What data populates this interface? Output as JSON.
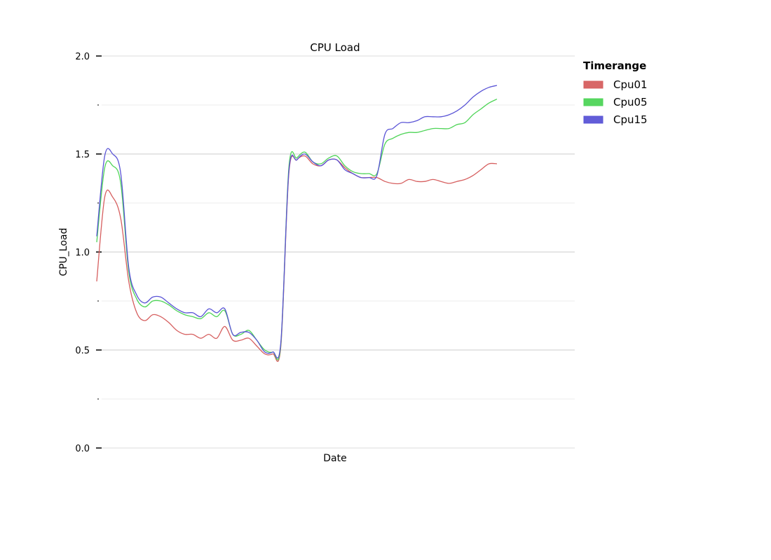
{
  "chart_data": {
    "type": "line",
    "title": "CPU Load",
    "xlabel": "Date",
    "ylabel": "CPU_Load",
    "ylim": [
      0.0,
      2.0
    ],
    "y_ticks": [
      0.0,
      0.5,
      1.0,
      1.5,
      2.0
    ],
    "y_tick_labels": [
      "0.0",
      "0.5",
      "1.0",
      "1.5",
      "2.0"
    ],
    "y_minor_ticks": [
      0.25,
      0.75,
      1.25,
      1.75
    ],
    "x_tick_labels": [],
    "grid": true,
    "legend": {
      "title": "Timerange",
      "placement": "outside-top-right"
    },
    "x": [
      0,
      2,
      4,
      6,
      8,
      10,
      12,
      14,
      16,
      18,
      20,
      22,
      24,
      26,
      28,
      30,
      32,
      34,
      36,
      38,
      40,
      42,
      44,
      46,
      48,
      50,
      52,
      54,
      56,
      58,
      60,
      62,
      64,
      66,
      68,
      70,
      72,
      74,
      76,
      78,
      80,
      82,
      84,
      86,
      88,
      90,
      92,
      94,
      96,
      98,
      100
    ],
    "series": [
      {
        "name": "Cpu01",
        "color": "#d65f5f",
        "values": [
          0.85,
          1.28,
          1.28,
          1.17,
          0.85,
          0.69,
          0.65,
          0.68,
          0.67,
          0.64,
          0.6,
          0.58,
          0.58,
          0.56,
          0.58,
          0.56,
          0.62,
          0.55,
          0.55,
          0.56,
          0.52,
          0.48,
          0.48,
          0.52,
          1.4,
          1.47,
          1.49,
          1.45,
          1.44,
          1.47,
          1.47,
          1.43,
          1.4,
          1.38,
          1.38,
          1.38,
          1.36,
          1.35,
          1.35,
          1.37,
          1.36,
          1.36,
          1.37,
          1.36,
          1.35,
          1.36,
          1.37,
          1.39,
          1.42,
          1.45,
          1.45
        ]
      },
      {
        "name": "Cpu05",
        "color": "#4ed457",
        "values": [
          1.05,
          1.43,
          1.44,
          1.35,
          0.9,
          0.76,
          0.72,
          0.75,
          0.75,
          0.73,
          0.7,
          0.68,
          0.67,
          0.66,
          0.69,
          0.67,
          0.7,
          0.58,
          0.58,
          0.6,
          0.55,
          0.5,
          0.49,
          0.53,
          1.43,
          1.48,
          1.51,
          1.46,
          1.45,
          1.48,
          1.49,
          1.44,
          1.41,
          1.4,
          1.4,
          1.4,
          1.55,
          1.58,
          1.6,
          1.61,
          1.61,
          1.62,
          1.63,
          1.63,
          1.63,
          1.65,
          1.66,
          1.7,
          1.73,
          1.76,
          1.78
        ]
      },
      {
        "name": "Cpu15",
        "color": "#5a54d6",
        "values": [
          1.08,
          1.49,
          1.5,
          1.4,
          0.92,
          0.78,
          0.74,
          0.77,
          0.77,
          0.74,
          0.71,
          0.69,
          0.69,
          0.67,
          0.71,
          0.69,
          0.71,
          0.58,
          0.59,
          0.59,
          0.55,
          0.49,
          0.49,
          0.54,
          1.41,
          1.47,
          1.5,
          1.46,
          1.44,
          1.47,
          1.47,
          1.42,
          1.4,
          1.38,
          1.38,
          1.39,
          1.6,
          1.63,
          1.66,
          1.66,
          1.67,
          1.69,
          1.69,
          1.69,
          1.7,
          1.72,
          1.75,
          1.79,
          1.82,
          1.84,
          1.85
        ]
      }
    ]
  }
}
